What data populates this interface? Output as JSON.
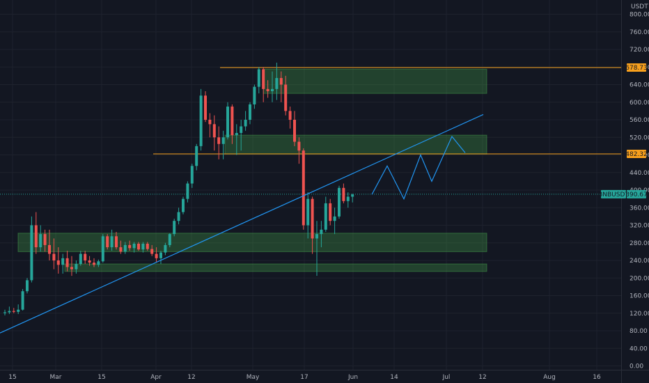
{
  "chart_data": {
    "type": "candlestick",
    "currency_label": "USDT",
    "y_ticks": [
      "800.00",
      "760.00",
      "720.00",
      "680.00",
      "640.00",
      "600.00",
      "560.00",
      "520.00",
      "480.00",
      "440.00",
      "400.00",
      "360.00",
      "320.00",
      "280.00",
      "240.00",
      "200.00",
      "160.00",
      "120.00",
      "80.00",
      "40.00",
      "0.00"
    ],
    "x_ticks": [
      "15",
      "Mar",
      "15",
      "Apr",
      "12",
      "May",
      "17",
      "Jun",
      "14",
      "Jul",
      "12",
      "Aug",
      "16"
    ],
    "ylim": [
      0,
      800
    ],
    "grid": true,
    "price_tags": [
      {
        "label": "678.73",
        "value": 678.73,
        "color": "#f7a01d",
        "text_color": "#131722"
      },
      {
        "label": "482.32",
        "value": 482.32,
        "color": "#f7a01d",
        "text_color": "#131722"
      },
      {
        "label": "BNBUSDT",
        "color": "#26a69a",
        "text_color": "#131722"
      },
      {
        "label": "390.67",
        "value": 390.67,
        "color": "#26a69a",
        "text_color": "#131722"
      }
    ],
    "horizontal_lines": [
      678.73,
      482.32
    ],
    "zones": [
      {
        "from": 620,
        "to": 675
      },
      {
        "from": 482,
        "to": 525
      },
      {
        "from": 260,
        "to": 302
      },
      {
        "from": 215,
        "to": 232
      }
    ],
    "trendline": {
      "start": [
        "early Feb",
        75
      ],
      "end": [
        "Jul 12",
        572
      ]
    },
    "projection": [
      390,
      455,
      380,
      480,
      420,
      522,
      485
    ],
    "candles_ohlc": [
      [
        120,
        128,
        115,
        122
      ],
      [
        122,
        135,
        118,
        125
      ],
      [
        125,
        132,
        120,
        123
      ],
      [
        123,
        140,
        118,
        128
      ],
      [
        128,
        175,
        126,
        170
      ],
      [
        170,
        200,
        165,
        195
      ],
      [
        195,
        340,
        190,
        320
      ],
      [
        320,
        350,
        255,
        270
      ],
      [
        270,
        320,
        260,
        300
      ],
      [
        300,
        310,
        260,
        275
      ],
      [
        275,
        310,
        240,
        255
      ],
      [
        255,
        290,
        220,
        240
      ],
      [
        240,
        270,
        210,
        230
      ],
      [
        230,
        255,
        210,
        245
      ],
      [
        245,
        262,
        215,
        225
      ],
      [
        225,
        250,
        205,
        220
      ],
      [
        220,
        240,
        210,
        232
      ],
      [
        232,
        262,
        228,
        255
      ],
      [
        255,
        262,
        232,
        240
      ],
      [
        240,
        250,
        228,
        235
      ],
      [
        235,
        245,
        225,
        230
      ],
      [
        230,
        242,
        225,
        238
      ],
      [
        238,
        300,
        235,
        295
      ],
      [
        295,
        300,
        265,
        270
      ],
      [
        270,
        310,
        262,
        295
      ],
      [
        295,
        305,
        265,
        270
      ],
      [
        270,
        285,
        255,
        260
      ],
      [
        260,
        282,
        255,
        275
      ],
      [
        275,
        285,
        262,
        268
      ],
      [
        268,
        282,
        258,
        278
      ],
      [
        278,
        282,
        262,
        265
      ],
      [
        265,
        282,
        258,
        278
      ],
      [
        278,
        282,
        262,
        266
      ],
      [
        266,
        275,
        250,
        255
      ],
      [
        255,
        270,
        235,
        245
      ],
      [
        245,
        262,
        232,
        258
      ],
      [
        258,
        280,
        252,
        275
      ],
      [
        275,
        302,
        270,
        300
      ],
      [
        300,
        335,
        295,
        330
      ],
      [
        330,
        360,
        322,
        350
      ],
      [
        350,
        385,
        345,
        380
      ],
      [
        380,
        420,
        372,
        415
      ],
      [
        415,
        460,
        405,
        455
      ],
      [
        455,
        505,
        445,
        500
      ],
      [
        500,
        630,
        490,
        615
      ],
      [
        615,
        625,
        555,
        560
      ],
      [
        560,
        575,
        520,
        550
      ],
      [
        550,
        570,
        490,
        520
      ],
      [
        520,
        545,
        470,
        505
      ],
      [
        505,
        535,
        470,
        520
      ],
      [
        520,
        600,
        515,
        590
      ],
      [
        590,
        595,
        505,
        525
      ],
      [
        525,
        550,
        480,
        530
      ],
      [
        530,
        560,
        490,
        545
      ],
      [
        545,
        580,
        535,
        560
      ],
      [
        560,
        600,
        550,
        595
      ],
      [
        595,
        640,
        585,
        635
      ],
      [
        635,
        680,
        620,
        675
      ],
      [
        675,
        680,
        600,
        630
      ],
      [
        630,
        650,
        610,
        625
      ],
      [
        625,
        670,
        600,
        630
      ],
      [
        630,
        690,
        605,
        655
      ],
      [
        655,
        670,
        600,
        640
      ],
      [
        640,
        660,
        570,
        580
      ],
      [
        580,
        590,
        540,
        560
      ],
      [
        560,
        580,
        500,
        510
      ],
      [
        510,
        520,
        460,
        490
      ],
      [
        490,
        495,
        310,
        320
      ],
      [
        320,
        395,
        290,
        380
      ],
      [
        380,
        385,
        255,
        290
      ],
      [
        290,
        330,
        205,
        300
      ],
      [
        300,
        330,
        270,
        310
      ],
      [
        310,
        385,
        305,
        370
      ],
      [
        370,
        380,
        320,
        330
      ],
      [
        330,
        360,
        300,
        340
      ],
      [
        340,
        410,
        335,
        405
      ],
      [
        405,
        415,
        370,
        375
      ],
      [
        375,
        395,
        360,
        385
      ],
      [
        385,
        392,
        372,
        390
      ]
    ]
  }
}
